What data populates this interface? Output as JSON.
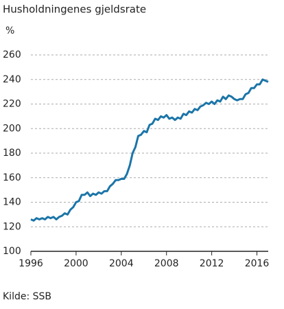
{
  "chart_data": {
    "type": "line",
    "title": "Husholdningenes gjeldsrate",
    "y_label": "%",
    "source": "Kilde: SSB",
    "x": [
      1996,
      1996.25,
      1996.5,
      1996.75,
      1997,
      1997.25,
      1997.5,
      1997.75,
      1998,
      1998.25,
      1998.5,
      1998.75,
      1999,
      1999.25,
      1999.5,
      1999.75,
      2000,
      2000.25,
      2000.5,
      2000.75,
      2001,
      2001.25,
      2001.5,
      2001.75,
      2002,
      2002.25,
      2002.5,
      2002.75,
      2003,
      2003.25,
      2003.5,
      2003.75,
      2004,
      2004.25,
      2004.5,
      2004.75,
      2005,
      2005.25,
      2005.5,
      2005.75,
      2006,
      2006.25,
      2006.5,
      2006.75,
      2007,
      2007.25,
      2007.5,
      2007.75,
      2008,
      2008.25,
      2008.5,
      2008.75,
      2009,
      2009.25,
      2009.5,
      2009.75,
      2010,
      2010.25,
      2010.5,
      2010.75,
      2011,
      2011.25,
      2011.5,
      2011.75,
      2012,
      2012.25,
      2012.5,
      2012.75,
      2013,
      2013.25,
      2013.5,
      2013.75,
      2014,
      2014.25,
      2014.5,
      2014.75,
      2015,
      2015.25,
      2015.5,
      2015.75,
      2016,
      2016.25,
      2016.5,
      2016.75,
      2017
    ],
    "series": [
      {
        "name": "Gjeldsrate",
        "color": "#1b75a8",
        "values": [
          126,
          125,
          127,
          126,
          127,
          126,
          128,
          127,
          128,
          126,
          128,
          129,
          131,
          130,
          134,
          136,
          140,
          141,
          146,
          146,
          148,
          145,
          147,
          146,
          148,
          147,
          149,
          149,
          153,
          155,
          158,
          158,
          159,
          159,
          163,
          170,
          180,
          185,
          194,
          195,
          198,
          197,
          203,
          204,
          208,
          207,
          210,
          209,
          211,
          208,
          209,
          207,
          209,
          208,
          212,
          211,
          214,
          213,
          216,
          215,
          218,
          219,
          221,
          220,
          222,
          220,
          223,
          222,
          226,
          224,
          227,
          226,
          224,
          223,
          224,
          224,
          228,
          229,
          233,
          233,
          236,
          236,
          240,
          239,
          238
        ]
      }
    ],
    "xlim": [
      1996,
      2017
    ],
    "xticks": [
      1996,
      2000,
      2004,
      2008,
      2012,
      2016
    ],
    "ylim": [
      100,
      260
    ],
    "yticks": [
      100,
      120,
      140,
      160,
      180,
      200,
      220,
      240,
      260
    ],
    "grid": true
  }
}
